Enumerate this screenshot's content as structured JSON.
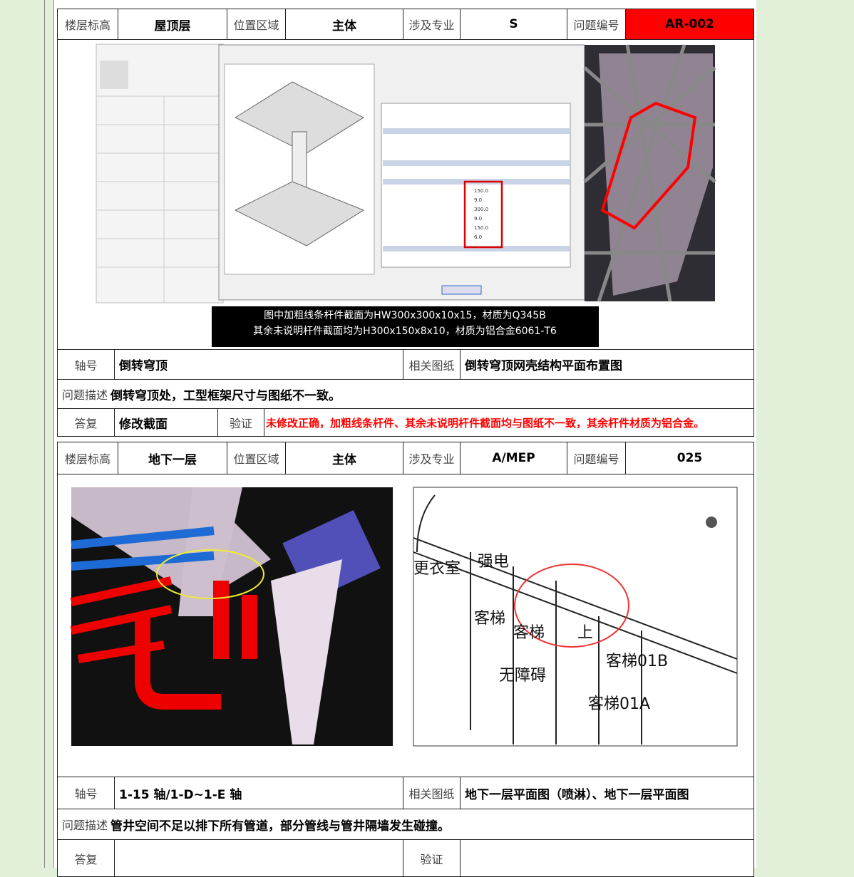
{
  "tables": [
    {
      "header": {
        "floor_label": "楼层标高",
        "floor": "屋顶层",
        "zone_label": "位置区域",
        "zone": "主体",
        "discipline_label": "涉及专业",
        "discipline": "S",
        "issue_no_label": "问题编号",
        "issue_no": "AR-002"
      },
      "image_text": {
        "dialog_values": [
          "150.0",
          "9.0",
          "300.0",
          "9.0",
          "150.0",
          "6.0"
        ],
        "caption": [
          "图中加粗线条杆件截面为HW300x300x10x15，材质为Q345B",
          "其余未说明杆件截面均为H300x150x8x10，材质为铝合金6061-T6"
        ]
      },
      "axis_label": "轴号",
      "axis": "倒转穹顶",
      "drawing_label": "相关图纸",
      "drawing": "倒转穹顶网壳结构平面布置图",
      "description_label": "问题描述",
      "description": "倒转穹顶处，工型框架尺寸与图纸不一致。",
      "reply_label": "答复",
      "reply": "修改截面",
      "verify_label": "验证",
      "verify": "未修改正确，加粗线条杆件、其余未说明杆件截面均与图纸不一致，其余杆件材质为铝合金。"
    },
    {
      "header": {
        "floor_label": "楼层标高",
        "floor": "地下一层",
        "zone_label": "位置区域",
        "zone": "主体",
        "discipline_label": "涉及专业",
        "discipline": "A/MEP",
        "issue_no_label": "问题编号",
        "issue_no": "025"
      },
      "image_text": {
        "plan_labels": [
          "更衣室",
          "强电",
          "客梯",
          "客梯",
          "上",
          "客梯01B",
          "无障碍",
          "客梯01A"
        ]
      },
      "axis_label": "轴号",
      "axis": "1-15 轴/1-D~1-E 轴",
      "drawing_label": "相关图纸",
      "drawing": "地下一层平面图（喷淋）、地下一层平面图",
      "description_label": "问题描述",
      "description": "管井空间不足以排下所有管道，部分管线与管井隔墙发生碰撞。",
      "reply_label": "答复",
      "verify_label": "验证"
    }
  ]
}
